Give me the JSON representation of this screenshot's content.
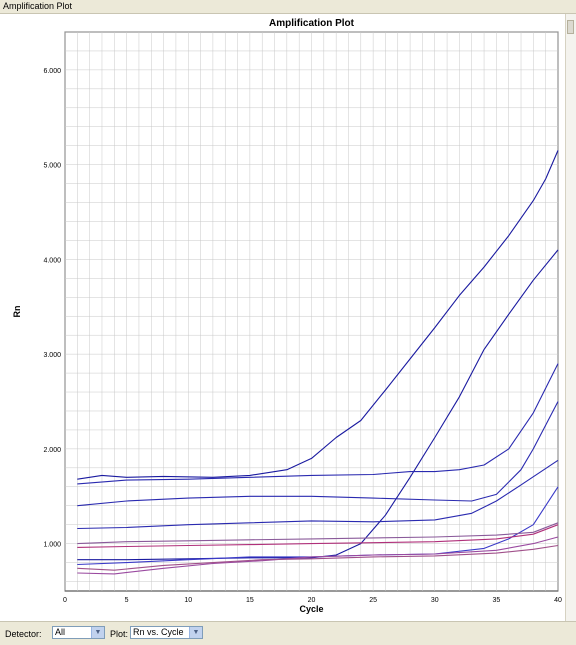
{
  "window": {
    "title": "Amplification Plot"
  },
  "controls": {
    "detector_label": "Detector:",
    "detector_value": "All",
    "plot_label": "Plot:",
    "plot_value": "Rn vs. Cycle",
    "arrow_glyph": "▼"
  },
  "chart_data": {
    "type": "line",
    "title": "Amplification Plot",
    "xlabel": "Cycle",
    "ylabel": "Rn",
    "xlim": [
      0,
      40
    ],
    "ylim": [
      0.5,
      6.4
    ],
    "x_ticks": [
      0,
      5,
      10,
      15,
      20,
      25,
      30,
      35,
      40
    ],
    "y_ticks": [
      1.0,
      2.0,
      3.0,
      4.0,
      5.0,
      6.0
    ],
    "y_tick_labels": [
      "1.000",
      "2.000",
      "3.000",
      "4.000",
      "5.000",
      "6.000"
    ],
    "grid": true,
    "series": [
      {
        "color": "#1a1aa0",
        "points": [
          [
            1,
            1.68
          ],
          [
            3,
            1.72
          ],
          [
            5,
            1.7
          ],
          [
            8,
            1.71
          ],
          [
            12,
            1.7
          ],
          [
            15,
            1.72
          ],
          [
            18,
            1.78
          ],
          [
            20,
            1.9
          ],
          [
            22,
            2.12
          ],
          [
            24,
            2.3
          ],
          [
            26,
            2.62
          ],
          [
            28,
            2.95
          ],
          [
            30,
            3.28
          ],
          [
            32,
            3.62
          ],
          [
            34,
            3.92
          ],
          [
            36,
            4.25
          ],
          [
            38,
            4.62
          ],
          [
            39,
            4.85
          ],
          [
            40,
            5.15
          ]
        ]
      },
      {
        "color": "#1a1aa0",
        "points": [
          [
            1,
            0.83
          ],
          [
            5,
            0.83
          ],
          [
            10,
            0.84
          ],
          [
            15,
            0.85
          ],
          [
            20,
            0.85
          ],
          [
            22,
            0.88
          ],
          [
            24,
            1.0
          ],
          [
            26,
            1.3
          ],
          [
            28,
            1.7
          ],
          [
            30,
            2.12
          ],
          [
            32,
            2.55
          ],
          [
            34,
            3.05
          ],
          [
            36,
            3.42
          ],
          [
            38,
            3.78
          ],
          [
            40,
            4.1
          ]
        ]
      },
      {
        "color": "#2a2ab0",
        "points": [
          [
            1,
            1.63
          ],
          [
            5,
            1.67
          ],
          [
            10,
            1.68
          ],
          [
            15,
            1.7
          ],
          [
            20,
            1.72
          ],
          [
            25,
            1.73
          ],
          [
            28,
            1.76
          ],
          [
            30,
            1.76
          ],
          [
            32,
            1.78
          ],
          [
            34,
            1.83
          ],
          [
            36,
            2.0
          ],
          [
            38,
            2.38
          ],
          [
            40,
            2.9
          ]
        ]
      },
      {
        "color": "#2a2ab0",
        "points": [
          [
            1,
            1.4
          ],
          [
            5,
            1.45
          ],
          [
            10,
            1.48
          ],
          [
            15,
            1.5
          ],
          [
            20,
            1.5
          ],
          [
            25,
            1.48
          ],
          [
            30,
            1.46
          ],
          [
            33,
            1.45
          ],
          [
            35,
            1.52
          ],
          [
            37,
            1.78
          ],
          [
            38,
            2.0
          ],
          [
            40,
            2.5
          ]
        ]
      },
      {
        "color": "#2a2ab0",
        "points": [
          [
            1,
            1.16
          ],
          [
            5,
            1.17
          ],
          [
            10,
            1.2
          ],
          [
            15,
            1.22
          ],
          [
            20,
            1.24
          ],
          [
            25,
            1.23
          ],
          [
            30,
            1.25
          ],
          [
            33,
            1.32
          ],
          [
            35,
            1.45
          ],
          [
            37,
            1.62
          ],
          [
            40,
            1.88
          ]
        ]
      },
      {
        "color": "#3a3ac8",
        "points": [
          [
            1,
            0.78
          ],
          [
            5,
            0.8
          ],
          [
            10,
            0.83
          ],
          [
            15,
            0.86
          ],
          [
            20,
            0.86
          ],
          [
            25,
            0.88
          ],
          [
            30,
            0.89
          ],
          [
            34,
            0.95
          ],
          [
            36,
            1.05
          ],
          [
            38,
            1.2
          ],
          [
            40,
            1.6
          ]
        ]
      },
      {
        "color": "#8a5a9a",
        "points": [
          [
            1,
            1.0
          ],
          [
            5,
            1.02
          ],
          [
            10,
            1.03
          ],
          [
            15,
            1.04
          ],
          [
            20,
            1.05
          ],
          [
            25,
            1.06
          ],
          [
            30,
            1.07
          ],
          [
            35,
            1.09
          ],
          [
            38,
            1.12
          ],
          [
            40,
            1.22
          ]
        ]
      },
      {
        "color": "#b0307a",
        "points": [
          [
            1,
            0.96
          ],
          [
            5,
            0.97
          ],
          [
            10,
            0.98
          ],
          [
            15,
            0.99
          ],
          [
            20,
            1.0
          ],
          [
            25,
            1.01
          ],
          [
            30,
            1.02
          ],
          [
            35,
            1.05
          ],
          [
            38,
            1.1
          ],
          [
            40,
            1.2
          ]
        ]
      },
      {
        "color": "#9a4aa0",
        "points": [
          [
            1,
            0.69
          ],
          [
            4,
            0.68
          ],
          [
            8,
            0.74
          ],
          [
            12,
            0.79
          ],
          [
            16,
            0.82
          ],
          [
            20,
            0.86
          ],
          [
            25,
            0.88
          ],
          [
            30,
            0.89
          ],
          [
            35,
            0.93
          ],
          [
            38,
            1.0
          ],
          [
            40,
            1.07
          ]
        ]
      },
      {
        "color": "#a0508a",
        "points": [
          [
            1,
            0.74
          ],
          [
            4,
            0.72
          ],
          [
            8,
            0.77
          ],
          [
            12,
            0.8
          ],
          [
            16,
            0.83
          ],
          [
            20,
            0.84
          ],
          [
            25,
            0.86
          ],
          [
            30,
            0.87
          ],
          [
            35,
            0.9
          ],
          [
            38,
            0.94
          ],
          [
            40,
            0.98
          ]
        ]
      }
    ]
  }
}
